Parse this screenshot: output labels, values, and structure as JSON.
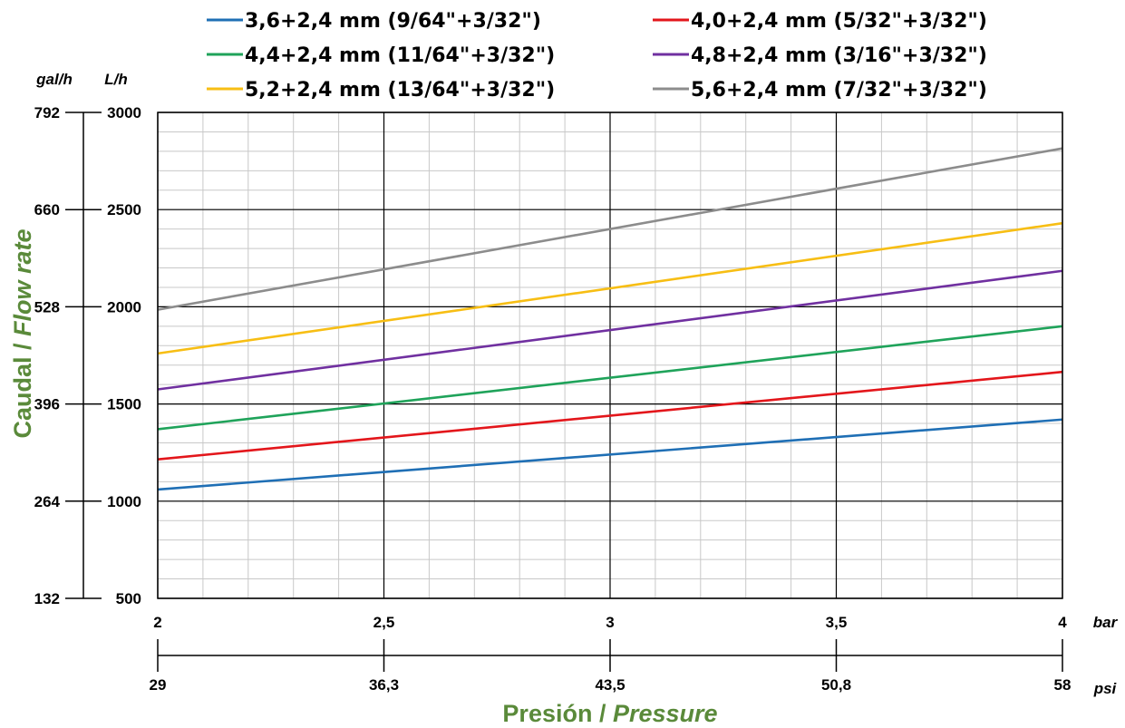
{
  "chart_data": {
    "type": "line",
    "xlabel": "Presión / ",
    "xlabel_italic": "Pressure",
    "ylabel": "Caudal / ",
    "ylabel_italic": "Flow rate",
    "x_unit_primary": "bar",
    "x_unit_secondary": "psi",
    "y_unit_primary": "L/h",
    "y_unit_secondary": "gal/h",
    "xlim": [
      2,
      4
    ],
    "ylim": [
      500,
      3000
    ],
    "x_ticks": [
      {
        "value": 2,
        "label": "2"
      },
      {
        "value": 2.5,
        "label": "2,5"
      },
      {
        "value": 3,
        "label": "3"
      },
      {
        "value": 3.5,
        "label": "3,5"
      },
      {
        "value": 4,
        "label": "4"
      }
    ],
    "x_ticks_psi": [
      {
        "value": 2,
        "label": "29"
      },
      {
        "value": 2.5,
        "label": "36,3"
      },
      {
        "value": 3,
        "label": "43,5"
      },
      {
        "value": 3.5,
        "label": "50,8"
      },
      {
        "value": 4,
        "label": "58"
      }
    ],
    "y_ticks": [
      {
        "value": 500,
        "label": "500"
      },
      {
        "value": 1000,
        "label": "1000"
      },
      {
        "value": 1500,
        "label": "1500"
      },
      {
        "value": 2000,
        "label": "2000"
      },
      {
        "value": 2500,
        "label": "2500"
      },
      {
        "value": 3000,
        "label": "3000"
      }
    ],
    "y_ticks_gal": [
      {
        "value": 500,
        "label": "132"
      },
      {
        "value": 1000,
        "label": "264"
      },
      {
        "value": 1500,
        "label": "396"
      },
      {
        "value": 2000,
        "label": "528"
      },
      {
        "value": 2500,
        "label": "660"
      },
      {
        "value": 3000,
        "label": "792"
      }
    ],
    "x_minor_step": 0.1,
    "y_minor_step": 100,
    "grid": true,
    "legend_position": "top",
    "series": [
      {
        "name": "3,6+2,4 mm (9/64\"+3/32\")",
        "color": "#1f6fb5",
        "x": [
          2,
          4
        ],
        "y": [
          1060,
          1420
        ]
      },
      {
        "name": "4,0+2,4 mm (5/32\"+3/32\")",
        "color": "#e3161b",
        "x": [
          2,
          4
        ],
        "y": [
          1215,
          1665
        ]
      },
      {
        "name": "4,4+2,4 mm (11/64\"+3/32\")",
        "color": "#1fa35a",
        "x": [
          2,
          4
        ],
        "y": [
          1370,
          1900
        ]
      },
      {
        "name": "4,8+2,4 mm (3/16\"+3/32\")",
        "color": "#7030a0",
        "x": [
          2,
          4
        ],
        "y": [
          1575,
          2185
        ]
      },
      {
        "name": "5,2+2,4 mm (13/64\"+3/32\")",
        "color": "#f7be14",
        "x": [
          2,
          4
        ],
        "y": [
          1760,
          2430
        ]
      },
      {
        "name": "5,6+2,4 mm (7/32\"+3/32\")",
        "color": "#8c8c8c",
        "x": [
          2,
          4
        ],
        "y": [
          1985,
          2815
        ]
      }
    ]
  }
}
